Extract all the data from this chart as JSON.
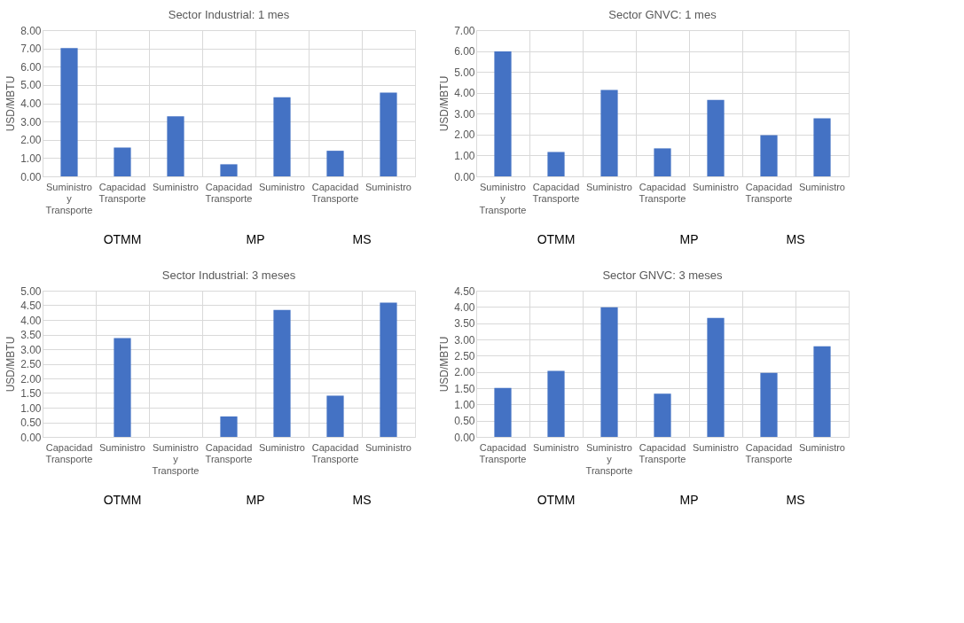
{
  "chart_data": [
    {
      "type": "bar",
      "title": "Sector Industrial: 1 mes",
      "ylabel": "USD/MBTU",
      "categories": [
        "Suministro y Transporte",
        "Capacidad Transporte",
        "Suministro",
        "Capacidad Transporte",
        "Suministro",
        "Capacidad Transporte",
        "Suministro"
      ],
      "values": [
        7.02,
        1.58,
        3.28,
        0.66,
        4.33,
        1.4,
        4.58
      ],
      "color": "#4472c4",
      "ylim": [
        0,
        8
      ],
      "yticks": [
        {
          "value": 0,
          "label": "0.00"
        },
        {
          "value": 1,
          "label": "1.00"
        },
        {
          "value": 2,
          "label": "2.00"
        },
        {
          "value": 3,
          "label": "3.00"
        },
        {
          "value": 4,
          "label": "4.00"
        },
        {
          "value": 5,
          "label": "5.00"
        },
        {
          "value": 6,
          "label": "6.00"
        },
        {
          "value": 7,
          "label": "7.00"
        },
        {
          "value": 8,
          "label": "8.00"
        }
      ],
      "grid": true,
      "annotations": [
        "OTMM",
        "MP",
        "MS"
      ]
    },
    {
      "type": "bar",
      "title": "Sector GNVC: 1 mes",
      "ylabel": "USD/MBTU",
      "categories": [
        "Suministro y Transporte",
        "Capacidad Transporte",
        "Suministro",
        "Capacidad Transporte",
        "Suministro",
        "Capacidad Transporte",
        "Suministro"
      ],
      "values": [
        5.98,
        1.17,
        4.14,
        1.34,
        3.66,
        1.97,
        2.78
      ],
      "color": "#4472c4",
      "ylim": [
        0,
        7
      ],
      "yticks": [
        {
          "value": 0,
          "label": "0.00"
        },
        {
          "value": 1,
          "label": "1.00"
        },
        {
          "value": 2,
          "label": "2.00"
        },
        {
          "value": 3,
          "label": "3.00"
        },
        {
          "value": 4,
          "label": "4.00"
        },
        {
          "value": 5,
          "label": "5.00"
        },
        {
          "value": 6,
          "label": "6.00"
        },
        {
          "value": 7,
          "label": "7.00"
        }
      ],
      "grid": true,
      "annotations": [
        "OTMM",
        "MP",
        "MS"
      ]
    },
    {
      "type": "bar",
      "title": "Sector Industrial: 3 meses",
      "ylabel": "USD/MBTU",
      "categories": [
        "Capacidad Transporte",
        "Suministro",
        "Suministro y Transporte",
        "Capacidad Transporte",
        "Suministro",
        "Capacidad Transporte",
        "Suministro"
      ],
      "values": [
        null,
        3.38,
        null,
        0.7,
        4.34,
        1.41,
        4.59
      ],
      "color": "#4472c4",
      "ylim": [
        0,
        5
      ],
      "yticks": [
        {
          "value": 0,
          "label": "0.00"
        },
        {
          "value": 0.5,
          "label": "0.50"
        },
        {
          "value": 1,
          "label": "1.00"
        },
        {
          "value": 1.5,
          "label": "1.50"
        },
        {
          "value": 2,
          "label": "2.00"
        },
        {
          "value": 2.5,
          "label": "2.50"
        },
        {
          "value": 3,
          "label": "3.00"
        },
        {
          "value": 3.5,
          "label": "3.50"
        },
        {
          "value": 4,
          "label": "4.00"
        },
        {
          "value": 4.5,
          "label": "4.50"
        },
        {
          "value": 5,
          "label": "5.00"
        }
      ],
      "grid": true,
      "annotations": [
        "OTMM",
        "MP",
        "MS"
      ]
    },
    {
      "type": "bar",
      "title": "Sector GNVC: 3 meses",
      "ylabel": "USD/MBTU",
      "categories": [
        "Capacidad Transporte",
        "Suministro",
        "Suministro y Transporte",
        "Capacidad Transporte",
        "Suministro",
        "Capacidad Transporte",
        "Suministro"
      ],
      "values": [
        1.51,
        2.03,
        3.99,
        1.33,
        3.66,
        1.97,
        2.79
      ],
      "color": "#4472c4",
      "ylim": [
        0,
        4.5
      ],
      "yticks": [
        {
          "value": 0,
          "label": "0.00"
        },
        {
          "value": 0.5,
          "label": "0.50"
        },
        {
          "value": 1,
          "label": "1.00"
        },
        {
          "value": 1.5,
          "label": "1.50"
        },
        {
          "value": 2,
          "label": "2.00"
        },
        {
          "value": 2.5,
          "label": "2.50"
        },
        {
          "value": 3,
          "label": "3.00"
        },
        {
          "value": 3.5,
          "label": "3.50"
        },
        {
          "value": 4,
          "label": "4.00"
        },
        {
          "value": 4.5,
          "label": "4.50"
        }
      ],
      "grid": true,
      "annotations": [
        "OTMM",
        "MP",
        "MS"
      ]
    }
  ]
}
